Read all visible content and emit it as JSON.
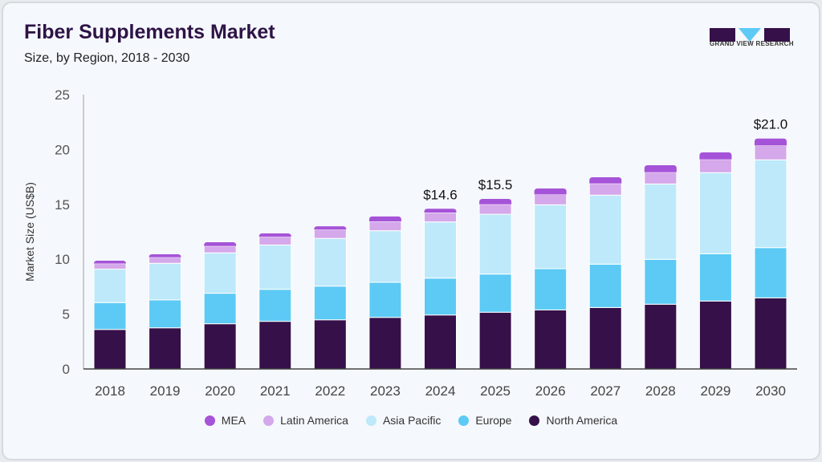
{
  "header": {
    "title": "Fiber Supplements Market",
    "subtitle": "Size, by Region, 2018 - 2030"
  },
  "logo": {
    "text": "GRAND VIEW RESEARCH"
  },
  "chart_data": {
    "type": "bar",
    "stacked": true,
    "title": "Fiber Supplements Market",
    "subtitle": "Size, by Region, 2018 - 2030",
    "xlabel": "",
    "ylabel": "Market Size (US$B)",
    "ylim": [
      0,
      25
    ],
    "yticks": [
      "0",
      "5",
      "10",
      "15",
      "20",
      "25"
    ],
    "grid": false,
    "legend_position": "bottom",
    "categories": [
      "2018",
      "2019",
      "2020",
      "2021",
      "2022",
      "2023",
      "2024",
      "2025",
      "2026",
      "2027",
      "2028",
      "2029",
      "2030"
    ],
    "series": [
      {
        "name": "North America",
        "color": "#361049",
        "values": [
          3.6,
          3.75,
          4.12,
          4.34,
          4.48,
          4.7,
          4.92,
          5.17,
          5.38,
          5.6,
          5.9,
          6.19,
          6.48
        ]
      },
      {
        "name": "Europe",
        "color": "#5ccaf5",
        "values": [
          2.45,
          2.55,
          2.78,
          2.92,
          3.07,
          3.2,
          3.36,
          3.48,
          3.76,
          3.95,
          4.09,
          4.31,
          4.58
        ]
      },
      {
        "name": "Asia Pacific",
        "color": "#bde9fa",
        "values": [
          3.05,
          3.33,
          3.68,
          4.04,
          4.35,
          4.7,
          5.12,
          5.45,
          5.82,
          6.29,
          6.87,
          7.39,
          8.0
        ]
      },
      {
        "name": "Latin America",
        "color": "#d4a8ea",
        "values": [
          0.5,
          0.55,
          0.62,
          0.74,
          0.8,
          0.85,
          0.85,
          0.9,
          0.94,
          1.06,
          1.07,
          1.21,
          1.31
        ]
      },
      {
        "name": "MEA",
        "color": "#a553d8",
        "values": [
          0.27,
          0.27,
          0.35,
          0.31,
          0.3,
          0.45,
          0.35,
          0.5,
          0.55,
          0.57,
          0.64,
          0.64,
          0.63
        ]
      }
    ],
    "annotations": [
      {
        "category": "2024",
        "label": "$14.6"
      },
      {
        "category": "2025",
        "label": "$15.5"
      },
      {
        "category": "2030",
        "label": "$21.0"
      }
    ],
    "legend_order": [
      "MEA",
      "Latin America",
      "Asia Pacific",
      "Europe",
      "North America"
    ]
  }
}
